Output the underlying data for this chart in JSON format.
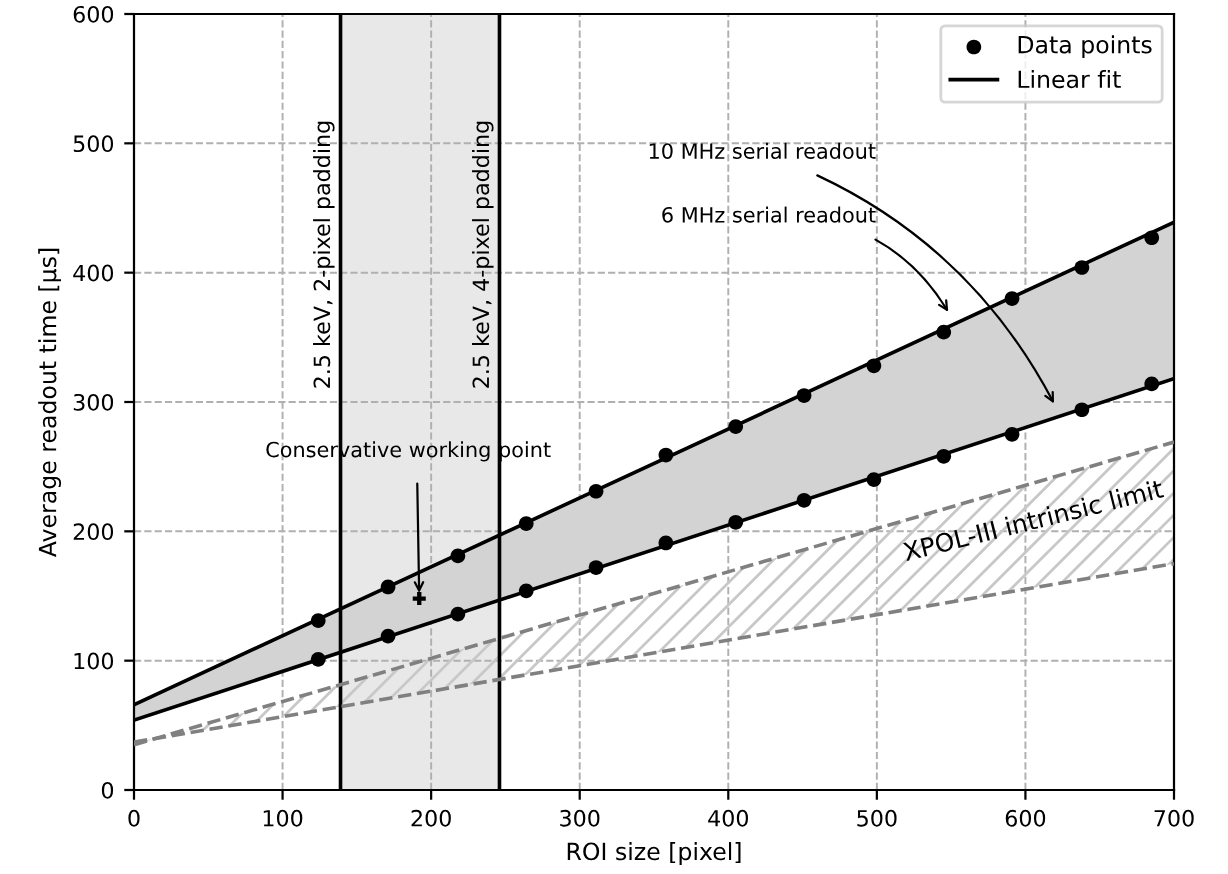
{
  "chart_data": {
    "type": "scatter",
    "xlabel": "ROI size [pixel]",
    "ylabel": "Average readout time [μs]",
    "xlim": [
      0,
      700
    ],
    "ylim": [
      0,
      600
    ],
    "xticks": [
      0,
      100,
      200,
      300,
      400,
      500,
      600,
      700
    ],
    "yticks": [
      0,
      100,
      200,
      300,
      400,
      500,
      600
    ],
    "grid": true,
    "legend": "top right",
    "series": [
      {
        "type": "line",
        "color": "#808080",
        "line_style": "dashed",
        "x": [
          0,
          700
        ],
        "values": [
          35,
          269
        ],
        "lower": [
          37,
          175
        ],
        "upper": [
          35,
          269
        ]
      },
      {
        "type": "line",
        "color": "#808080",
        "line_style": "dashed",
        "x": [
          0,
          700
        ],
        "values": [
          37,
          175
        ]
      },
      {
        "name": "Data points",
        "color": "#000000",
        "marker": "circle",
        "x": [
          124,
          171,
          218,
          264,
          311,
          358,
          405,
          451,
          498,
          545,
          591,
          638,
          685
        ],
        "values": [
          131,
          157,
          181,
          206,
          231,
          259,
          281,
          305,
          328,
          354,
          380,
          404,
          427
        ]
      },
      {
        "color": "#000000",
        "marker": "circle",
        "x": [
          124,
          171,
          218,
          264,
          311,
          358,
          405,
          451,
          498,
          545,
          591,
          638,
          685
        ],
        "values": [
          101,
          119,
          136,
          154,
          172,
          191,
          207,
          224,
          240,
          258,
          275,
          294,
          314
        ]
      },
      {
        "color": "#000000",
        "marker": "cross",
        "x": [
          192
        ],
        "values": [
          148
        ]
      },
      {
        "type": "line",
        "name": "Linear fit",
        "color": "#000000",
        "x": [
          0,
          700
        ],
        "values": [
          66,
          439
        ],
        "lower": [
          54,
          318
        ],
        "upper": [
          66,
          439
        ]
      },
      {
        "type": "line",
        "color": "#000000",
        "x": [
          0,
          700
        ],
        "values": [
          54,
          318
        ]
      }
    ],
    "bands": [
      {
        "axis": "x",
        "from": 139,
        "to": 246,
        "color": "#e8e8e8"
      }
    ],
    "ref_lines": [
      {
        "axis": "x",
        "value": 139,
        "label": "2.5 keV, 2-pixel padding",
        "color": "#000000"
      },
      {
        "axis": "x",
        "value": 246,
        "label": "2.5 keV, 4-pixel padding",
        "color": "#000000"
      }
    ],
    "annotations": [
      {
        "text": "10 MHz serial readout",
        "x": 621,
        "y": 295
      },
      {
        "text": "6 MHz serial readout",
        "x": 550,
        "y": 366
      },
      {
        "text": "Conservative working point",
        "x": 192,
        "y": 148
      },
      "XPOL-III intrinsic limit"
    ]
  }
}
